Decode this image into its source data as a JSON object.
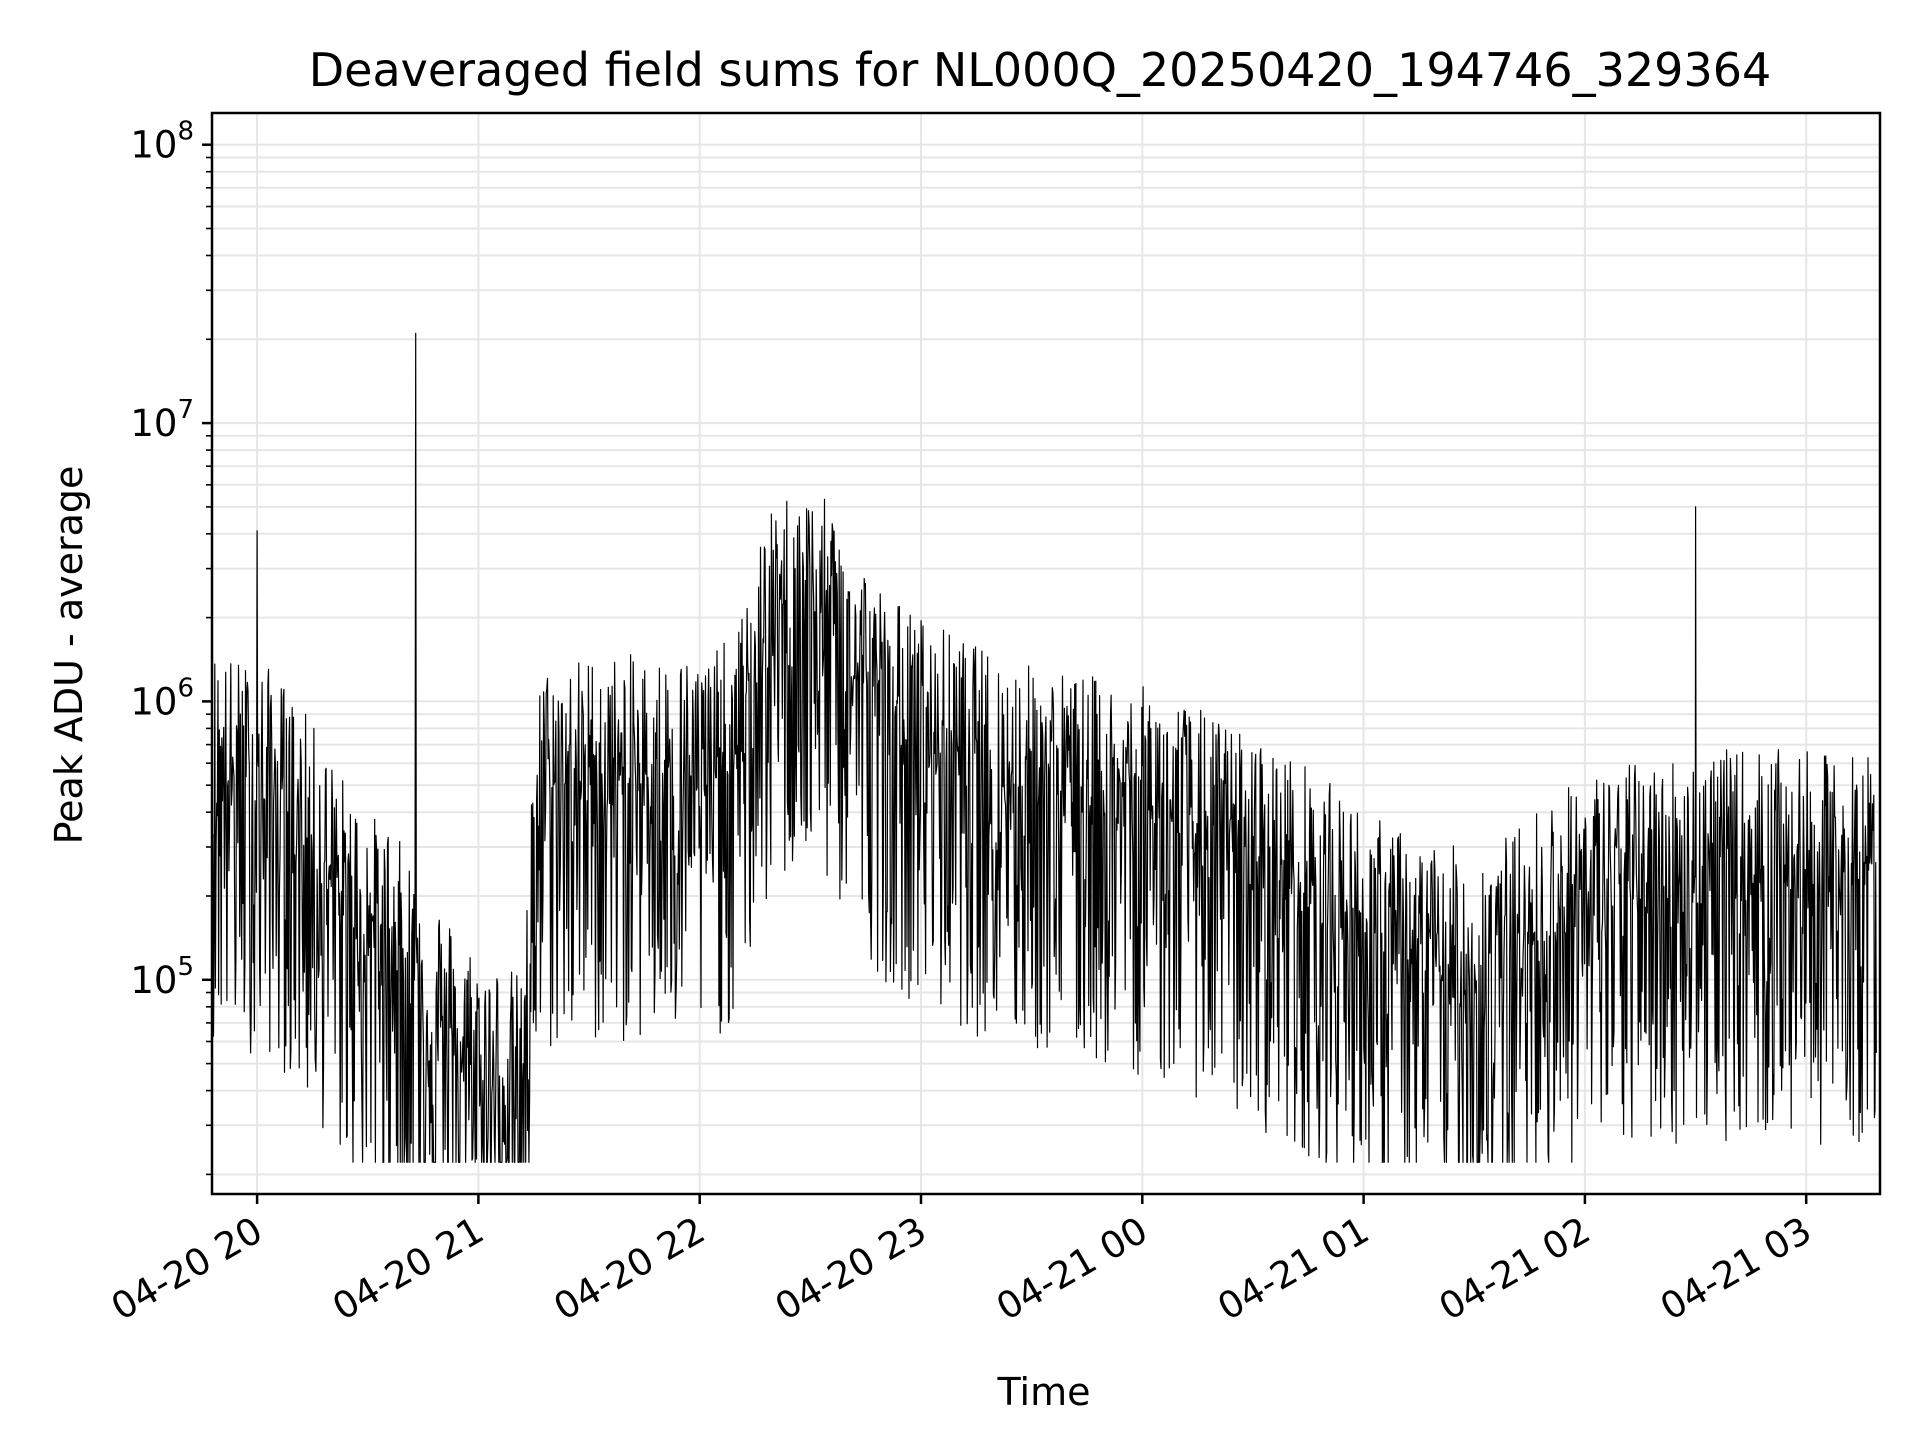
{
  "chart_data": {
    "type": "line",
    "title": "Deaveraged field sums for NL000Q_20250420_194746_329364",
    "xlabel": "Time",
    "ylabel": "Peak ADU - average",
    "yscale": "log",
    "ylim": [
      17000,
      130000000
    ],
    "xlim": [
      "2025-04-20 19:47:46",
      "2025-04-21 03:20:00"
    ],
    "grid": true,
    "grid_minor": true,
    "legend": "none",
    "line_color": "#000000",
    "x_ticks": [
      {
        "value": "2025-04-20 20:00",
        "label": "04-20 20"
      },
      {
        "value": "2025-04-20 21:00",
        "label": "04-20 21"
      },
      {
        "value": "2025-04-20 22:00",
        "label": "04-20 22"
      },
      {
        "value": "2025-04-20 23:00",
        "label": "04-20 23"
      },
      {
        "value": "2025-04-21 00:00",
        "label": "04-21 00"
      },
      {
        "value": "2025-04-21 01:00",
        "label": "04-21 01"
      },
      {
        "value": "2025-04-21 02:00",
        "label": "04-21 02"
      },
      {
        "value": "2025-04-21 03:00",
        "label": "04-21 03"
      }
    ],
    "y_ticks": [
      {
        "value": 100000,
        "base": "10",
        "exp": "5"
      },
      {
        "value": 1000000,
        "base": "10",
        "exp": "6"
      },
      {
        "value": 10000000,
        "base": "10",
        "exp": "7"
      },
      {
        "value": 100000000,
        "base": "10",
        "exp": "8"
      }
    ],
    "series": [
      {
        "x": [
          "2025-04-20 19:48",
          "2025-04-20 19:52",
          "2025-04-20 19:56",
          "2025-04-20 20:00",
          "2025-04-20 20:04",
          "2025-04-20 20:08",
          "2025-04-20 20:12",
          "2025-04-20 20:16",
          "2025-04-20 20:20",
          "2025-04-20 20:24",
          "2025-04-20 20:28",
          "2025-04-20 20:32",
          "2025-04-20 20:36",
          "2025-04-20 20:40",
          "2025-04-20 20:44",
          "2025-04-20 20:48",
          "2025-04-20 20:52",
          "2025-04-20 20:56",
          "2025-04-20 21:00",
          "2025-04-20 21:04",
          "2025-04-20 21:08",
          "2025-04-20 21:12",
          "2025-04-20 21:16",
          "2025-04-20 21:20",
          "2025-04-20 21:30",
          "2025-04-20 21:40",
          "2025-04-20 21:50",
          "2025-04-20 22:00",
          "2025-04-20 22:10",
          "2025-04-20 22:15",
          "2025-04-20 22:20",
          "2025-04-20 22:25",
          "2025-04-20 22:30",
          "2025-04-20 22:35",
          "2025-04-20 22:40",
          "2025-04-20 22:45",
          "2025-04-20 22:50",
          "2025-04-20 23:00",
          "2025-04-20 23:15",
          "2025-04-20 23:30",
          "2025-04-20 23:45",
          "2025-04-21 00:00",
          "2025-04-21 00:15",
          "2025-04-21 00:30",
          "2025-04-21 00:45",
          "2025-04-21 01:00",
          "2025-04-21 01:15",
          "2025-04-21 01:30",
          "2025-04-21 01:40",
          "2025-04-21 01:50",
          "2025-04-21 02:00",
          "2025-04-21 02:15",
          "2025-04-21 02:30",
          "2025-04-21 02:45",
          "2025-04-21 03:00",
          "2025-04-21 03:10",
          "2025-04-21 03:19"
        ],
        "y": [
          700000,
          650000,
          620000,
          600000,
          580000,
          500000,
          420000,
          350000,
          280000,
          230000,
          190000,
          170000,
          160000,
          130000,
          110000,
          95000,
          75000,
          62000,
          58000,
          52000,
          50000,
          45000,
          550000,
          600000,
          650000,
          650000,
          650000,
          650000,
          750000,
          1500000,
          2200000,
          2600000,
          2500000,
          2300000,
          1800000,
          1400000,
          1100000,
          900000,
          700000,
          600000,
          550000,
          500000,
          420000,
          330000,
          260000,
          180000,
          140000,
          130000,
          150000,
          200000,
          240000,
          270000,
          290000,
          300000,
          290000,
          280000,
          300000
        ]
      }
    ],
    "spikes": [
      {
        "x": "2025-04-20 20:00",
        "y": 4100000
      },
      {
        "x": "2025-04-20 20:43",
        "y": 21000000
      },
      {
        "x": "2025-04-21 02:30",
        "y": 5000000
      },
      {
        "x": "2025-04-20 22:27",
        "y": 4600000
      }
    ]
  }
}
